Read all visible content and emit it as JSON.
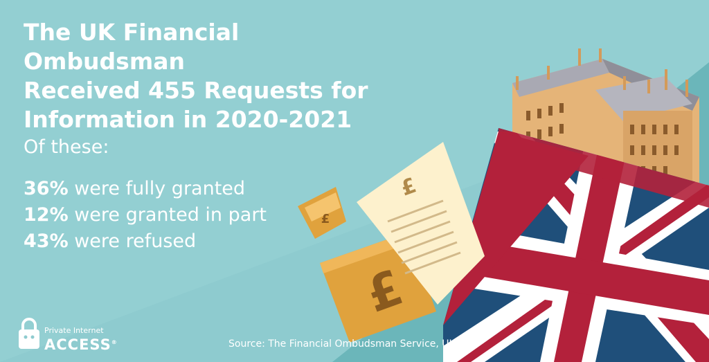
{
  "headline": {
    "line1": "The UK Financial Ombudsman",
    "line2": "Received 455 Requests for",
    "line3": "Information in 2020-2021"
  },
  "subheading": "Of these:",
  "stats": [
    {
      "value": "36%",
      "text": " were fully granted"
    },
    {
      "value": "12%",
      "text": " were granted in part"
    },
    {
      "value": "43%",
      "text": " were refused"
    }
  ],
  "source": "Source: The Financial Ombudsman Service, UK",
  "logo": {
    "line1": "Private Internet",
    "line2": "ACCESS",
    "mark": "®"
  },
  "colors": {
    "background": "#8cc9cd",
    "background_dark": "#6fb8bc",
    "flag_red": "#b3213b",
    "flag_blue": "#1f4f7a",
    "gold": "#e0a23d",
    "building": "#e8b77c"
  }
}
